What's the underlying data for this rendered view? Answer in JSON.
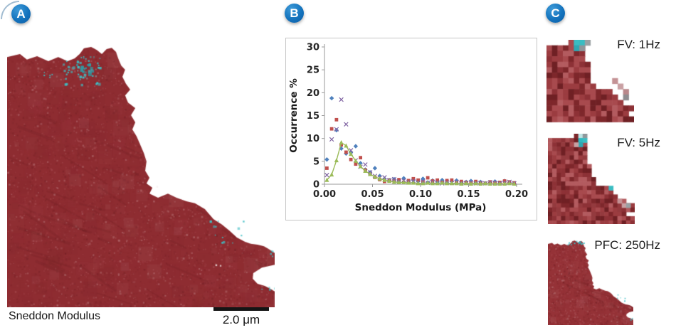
{
  "badges": {
    "items": [
      {
        "label": "A"
      },
      {
        "label": "B"
      },
      {
        "label": "C"
      }
    ],
    "color": "#1473bd",
    "text_color": "#ffffff"
  },
  "panel_a": {
    "caption": "Sneddon Modulus",
    "scalebar_label": "2.0 μm"
  },
  "panel_c": {
    "thumbs": [
      {
        "label": "FV: 1Hz"
      },
      {
        "label": "FV: 5Hz"
      },
      {
        "label": "PFC: 250Hz"
      }
    ]
  },
  "chart_data": {
    "type": "scatter",
    "title": "",
    "xlabel": "Sneddon Modulus (MPa)",
    "ylabel": "Occurrence %",
    "xlim": [
      0,
      0.2
    ],
    "ylim": [
      0,
      30
    ],
    "xticks": [
      0.0,
      0.05,
      0.1,
      0.15,
      0.2
    ],
    "yticks": [
      0,
      5,
      10,
      15,
      20,
      25,
      30
    ],
    "grid": false,
    "legend": "none",
    "x_start": 0.0025,
    "x_step": 0.005,
    "series": [
      {
        "name": "blue-diamond",
        "marker": "diamond",
        "color": "#4F81BD",
        "line": false,
        "values": [
          5.4,
          18.8,
          11.8,
          7.8,
          6.7,
          6.9,
          8.3,
          4.6,
          3.2,
          2.6,
          3.5,
          1.8,
          1.2,
          0.9,
          1.1,
          0.7,
          1.3,
          0.5,
          0.9,
          0.6,
          1.2,
          0.4,
          0.8,
          0.5,
          0.9,
          0.3,
          0.6,
          0.8,
          0.3,
          0.5,
          0.7,
          0.3,
          0.5,
          0.2,
          0.4,
          0.6,
          0.3,
          0.7,
          0.4,
          0.2
        ]
      },
      {
        "name": "red-square",
        "marker": "square",
        "color": "#C0504D",
        "line": false,
        "values": [
          3.5,
          12.1,
          14.1,
          8.6,
          7.0,
          5.4,
          4.4,
          5.8,
          3.1,
          2.2,
          1.5,
          1.0,
          0.6,
          0.9,
          0.7,
          1.0,
          0.4,
          0.8,
          1.2,
          0.9,
          0.5,
          1.4,
          0.7,
          0.9,
          0.4,
          0.8,
          0.9,
          0.3,
          0.6,
          0.4,
          0.3,
          0.6,
          0.3,
          0.2,
          0.5,
          0.3,
          0.4,
          0.7,
          0.5,
          0.3
        ]
      },
      {
        "name": "purple-x",
        "marker": "x",
        "color": "#8064A2",
        "line": false,
        "values": [
          2.0,
          9.8,
          12.0,
          18.5,
          13.1,
          7.4,
          5.2,
          3.8,
          4.3,
          2.6,
          1.8,
          1.4,
          1.5,
          0.9,
          1.1,
          0.6,
          0.8,
          0.5,
          0.7,
          0.4,
          0.6,
          0.3,
          0.5,
          0.4,
          0.2,
          0.4,
          0.3,
          0.5,
          0.2,
          0.3,
          0.4,
          0.2,
          0.3,
          0.2,
          0.4,
          0.3,
          0.2,
          0.3,
          0.5,
          0.2
        ]
      },
      {
        "name": "green-triangle-line",
        "marker": "triangle",
        "color": "#9BBB59",
        "line": true,
        "values": [
          0.9,
          2.1,
          5.2,
          9.1,
          8.4,
          6.6,
          5.1,
          3.9,
          2.9,
          2.2,
          1.6,
          1.2,
          0.9,
          0.7,
          0.5,
          0.4,
          0.4,
          0.3,
          0.3,
          0.2,
          0.2,
          0.3,
          0.2,
          0.2,
          0.3,
          0.2,
          0.2,
          0.2,
          0.1,
          0.2,
          0.1,
          0.2,
          0.1,
          0.2,
          0.1,
          0.1,
          0.1,
          0.1,
          0.2,
          0.1
        ]
      }
    ]
  },
  "cell_images": {
    "a": {
      "seed": 7,
      "base": "#8e2c31",
      "palette": [
        "#6e1f24",
        "#7c2428",
        "#8a2a2f",
        "#97343a",
        "#a34449",
        "#b25b60",
        "#c48d90"
      ],
      "texture": [
        [
          6000,
          1,
          3,
          0.15,
          0.45
        ],
        [
          500,
          6,
          22,
          0.04,
          0.1
        ]
      ],
      "streaks": 45,
      "streak_color": "#511318",
      "outline": [
        [
          0.0,
          0.049
        ],
        [
          0.048,
          0.038
        ],
        [
          0.074,
          0.059
        ],
        [
          0.112,
          0.046
        ],
        [
          0.154,
          0.065
        ],
        [
          0.191,
          0.049
        ],
        [
          0.226,
          0.065
        ],
        [
          0.253,
          0.054
        ],
        [
          0.271,
          0.038
        ],
        [
          0.287,
          0.016
        ],
        [
          0.314,
          0.011
        ],
        [
          0.335,
          0.022
        ],
        [
          0.354,
          0.038
        ],
        [
          0.372,
          0.019
        ],
        [
          0.391,
          0.014
        ],
        [
          0.407,
          0.03
        ],
        [
          0.415,
          0.054
        ],
        [
          0.426,
          0.081
        ],
        [
          0.441,
          0.097
        ],
        [
          0.431,
          0.124
        ],
        [
          0.444,
          0.151
        ],
        [
          0.46,
          0.173
        ],
        [
          0.441,
          0.195
        ],
        [
          0.452,
          0.222
        ],
        [
          0.479,
          0.243
        ],
        [
          0.463,
          0.27
        ],
        [
          0.479,
          0.297
        ],
        [
          0.468,
          0.324
        ],
        [
          0.484,
          0.351
        ],
        [
          0.497,
          0.381
        ],
        [
          0.511,
          0.414
        ],
        [
          0.521,
          0.446
        ],
        [
          0.516,
          0.481
        ],
        [
          0.532,
          0.508
        ],
        [
          0.521,
          0.53
        ],
        [
          0.543,
          0.546
        ],
        [
          0.532,
          0.568
        ],
        [
          0.564,
          0.584
        ],
        [
          0.601,
          0.568
        ],
        [
          0.633,
          0.584
        ],
        [
          0.67,
          0.597
        ],
        [
          0.702,
          0.605
        ],
        [
          0.739,
          0.627
        ],
        [
          0.771,
          0.665
        ],
        [
          0.803,
          0.686
        ],
        [
          0.83,
          0.708
        ],
        [
          0.859,
          0.735
        ],
        [
          0.888,
          0.751
        ],
        [
          0.91,
          0.759
        ],
        [
          0.936,
          0.762
        ],
        [
          0.96,
          0.768
        ],
        [
          0.976,
          0.778
        ],
        [
          1.002,
          0.795
        ],
        [
          1.002,
          0.838
        ],
        [
          0.952,
          0.849
        ],
        [
          0.92,
          0.87
        ],
        [
          0.918,
          0.892
        ],
        [
          0.936,
          0.911
        ],
        [
          0.963,
          0.919
        ],
        [
          0.984,
          0.93
        ],
        [
          1.002,
          0.941
        ],
        [
          1.002,
          1.002
        ],
        [
          -0.002,
          1.002
        ]
      ],
      "speck_zones": [
        [
          0.207,
          0.059,
          0.138,
          0.092,
          38,
          1.5,
          4,
          "#3ebec4"
        ],
        [
          0.255,
          0.072,
          0.065,
          0.045,
          14,
          2,
          5,
          "#2f9aa4"
        ],
        [
          0.205,
          0.046,
          0.145,
          0.016,
          8,
          1,
          2.5,
          "#3ebec4"
        ],
        [
          0.135,
          0.1,
          0.05,
          0.03,
          5,
          1,
          2.5,
          "#3ebec4"
        ],
        [
          0.24,
          0.07,
          0.09,
          0.06,
          8,
          1,
          2.5,
          "#7f8a8f"
        ],
        [
          0.755,
          0.665,
          0.149,
          0.092,
          12,
          1.5,
          3.5,
          "#3ebec4"
        ],
        [
          0.975,
          0.78,
          0.025,
          0.03,
          4,
          1.5,
          3,
          "#3ebec4"
        ],
        [
          0.95,
          0.9,
          0.05,
          0.04,
          4,
          1.5,
          3,
          "#3ebec4"
        ],
        [
          0.77,
          0.83,
          0.03,
          0.02,
          2,
          2,
          4,
          "#f7f2f2"
        ],
        [
          0.54,
          0.53,
          0.02,
          0.02,
          1,
          2,
          3,
          "#f7f2f2"
        ]
      ]
    },
    "t1": {
      "seed": 11,
      "grid": 16,
      "palette": [
        "#7e272b",
        "#8d3136",
        "#9b3c40",
        "#a84a4e",
        "#b35b5f",
        "#6f2024"
      ],
      "outline": "a",
      "cells": [
        [
          5,
          0,
          "#3abdc2"
        ],
        [
          6,
          0,
          "#3abdc2"
        ],
        [
          5,
          1,
          "#2fa8b2"
        ],
        [
          6,
          1,
          "#8f979b"
        ],
        [
          7,
          0,
          "#9aa1a4"
        ],
        [
          12,
          7,
          "#c49295"
        ],
        [
          13,
          8,
          "#c9a0a3"
        ],
        [
          14,
          9,
          "#b9888b"
        ],
        [
          14,
          10,
          "#8f8d90"
        ]
      ]
    },
    "t2": {
      "seed": 23,
      "grid": 20,
      "palette": [
        "#7e272b",
        "#8d3136",
        "#9b3c40",
        "#a84a4e",
        "#b35b5f",
        "#6f2024",
        "#943a3e"
      ],
      "outline": "a",
      "cells": [
        [
          7,
          0,
          "#bfe3e3"
        ],
        [
          8,
          0,
          "#8f979b"
        ],
        [
          7,
          1,
          "#2fb9c0"
        ],
        [
          8,
          1,
          "#3abdc2"
        ],
        [
          7,
          2,
          "#2fa8b2"
        ],
        [
          6,
          2,
          "#c9a0a3"
        ],
        [
          14,
          12,
          "#3abdc2"
        ],
        [
          16,
          15,
          "#c49295"
        ],
        [
          17,
          16,
          "#c9a0a3"
        ],
        [
          18,
          16,
          "#9aa1a4"
        ]
      ]
    },
    "t3": {
      "seed": 31,
      "base": "#953237",
      "palette": [
        "#6e1f24",
        "#7c2428",
        "#8a2a2f",
        "#97343a",
        "#a34449",
        "#b25b60",
        "#c48d90"
      ],
      "texture": [
        [
          1600,
          1,
          2.5,
          0.2,
          0.5
        ],
        [
          160,
          4,
          12,
          0.05,
          0.12
        ]
      ],
      "streaks": 15,
      "streak_color": "#511318",
      "outline": "a",
      "speck_zones": [
        [
          0.2,
          0.02,
          0.22,
          0.045,
          10,
          1,
          2.5,
          "#3ebec4"
        ],
        [
          0.3,
          0.0,
          0.08,
          0.03,
          4,
          1.5,
          3,
          "#2fa8b2"
        ],
        [
          0.76,
          0.64,
          0.15,
          0.09,
          5,
          1,
          2,
          "#3ebec4"
        ],
        [
          0.96,
          0.88,
          0.04,
          0.05,
          3,
          1,
          2.5,
          "#3ebec4"
        ]
      ]
    }
  }
}
